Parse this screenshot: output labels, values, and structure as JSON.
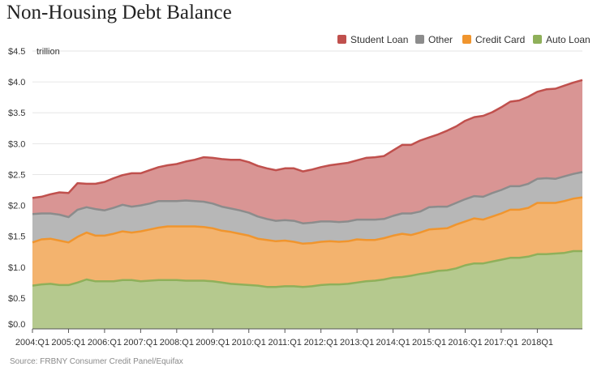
{
  "chart_data": {
    "type": "area",
    "title": "Non-Housing Debt Balance",
    "ylabel": "trillion",
    "ylim": [
      0,
      4.5
    ],
    "yticks": [
      "$0.0",
      "$0.5",
      "$1.0",
      "$1.5",
      "$2.0",
      "$2.5",
      "$3.0",
      "$3.5",
      "$4.0",
      "$4.5"
    ],
    "xticks": [
      "2004:Q1",
      "2005:Q1",
      "2006:Q1",
      "2007:Q1",
      "2008:Q1",
      "2009:Q1",
      "2010:Q1",
      "2011:Q1",
      "2012:Q1",
      "2013:Q1",
      "2014:Q1",
      "2015:Q1",
      "2016:Q1",
      "2017:Q1",
      "2018Q1"
    ],
    "x_start": "2004:Q1",
    "x_end": "2018:Q2",
    "series": [
      {
        "name": "Auto Loan",
        "color": "#8fb05a",
        "fill": "#b5c98e",
        "values": [
          0.7,
          0.72,
          0.73,
          0.71,
          0.71,
          0.75,
          0.8,
          0.77,
          0.77,
          0.77,
          0.79,
          0.79,
          0.77,
          0.78,
          0.79,
          0.79,
          0.79,
          0.78,
          0.78,
          0.78,
          0.77,
          0.75,
          0.73,
          0.72,
          0.71,
          0.7,
          0.68,
          0.68,
          0.69,
          0.69,
          0.68,
          0.69,
          0.71,
          0.72,
          0.72,
          0.73,
          0.75,
          0.77,
          0.78,
          0.8,
          0.83,
          0.84,
          0.86,
          0.89,
          0.91,
          0.94,
          0.95,
          0.98,
          1.03,
          1.06,
          1.06,
          1.09,
          1.12,
          1.15,
          1.15,
          1.17,
          1.21,
          1.21,
          1.22,
          1.23,
          1.26,
          1.26
        ]
      },
      {
        "name": "Credit Card",
        "color": "#f0952e",
        "fill": "#f3b36e",
        "values": [
          0.7,
          0.73,
          0.73,
          0.72,
          0.69,
          0.74,
          0.76,
          0.74,
          0.74,
          0.77,
          0.79,
          0.77,
          0.81,
          0.83,
          0.85,
          0.87,
          0.87,
          0.88,
          0.88,
          0.87,
          0.86,
          0.84,
          0.84,
          0.82,
          0.8,
          0.76,
          0.76,
          0.74,
          0.74,
          0.72,
          0.7,
          0.7,
          0.7,
          0.7,
          0.69,
          0.69,
          0.7,
          0.67,
          0.66,
          0.67,
          0.68,
          0.7,
          0.66,
          0.67,
          0.7,
          0.68,
          0.68,
          0.71,
          0.71,
          0.73,
          0.71,
          0.73,
          0.75,
          0.78,
          0.78,
          0.79,
          0.83,
          0.83,
          0.82,
          0.84,
          0.85,
          0.87
        ]
      },
      {
        "name": "Other",
        "color": "#8c8c8c",
        "fill": "#b7b7b7",
        "values": [
          0.46,
          0.42,
          0.41,
          0.42,
          0.41,
          0.44,
          0.41,
          0.43,
          0.41,
          0.42,
          0.43,
          0.42,
          0.42,
          0.42,
          0.43,
          0.41,
          0.41,
          0.42,
          0.41,
          0.41,
          0.4,
          0.39,
          0.38,
          0.38,
          0.37,
          0.36,
          0.34,
          0.33,
          0.33,
          0.34,
          0.33,
          0.33,
          0.33,
          0.32,
          0.32,
          0.32,
          0.32,
          0.33,
          0.33,
          0.31,
          0.32,
          0.33,
          0.35,
          0.34,
          0.36,
          0.36,
          0.35,
          0.35,
          0.36,
          0.36,
          0.37,
          0.38,
          0.38,
          0.38,
          0.38,
          0.39,
          0.39,
          0.4,
          0.39,
          0.4,
          0.4,
          0.41
        ]
      },
      {
        "name": "Student Loan",
        "color": "#c0504d",
        "fill": "#d99594",
        "values": [
          0.26,
          0.27,
          0.31,
          0.36,
          0.39,
          0.43,
          0.38,
          0.41,
          0.46,
          0.48,
          0.48,
          0.54,
          0.52,
          0.54,
          0.55,
          0.58,
          0.6,
          0.63,
          0.67,
          0.72,
          0.74,
          0.77,
          0.79,
          0.82,
          0.82,
          0.82,
          0.82,
          0.82,
          0.84,
          0.85,
          0.84,
          0.86,
          0.88,
          0.91,
          0.94,
          0.95,
          0.96,
          1.0,
          1.01,
          1.02,
          1.06,
          1.11,
          1.11,
          1.15,
          1.13,
          1.17,
          1.23,
          1.24,
          1.27,
          1.28,
          1.31,
          1.31,
          1.34,
          1.37,
          1.39,
          1.41,
          1.41,
          1.44,
          1.46,
          1.47,
          1.48,
          1.49
        ]
      }
    ],
    "legend": [
      "Student Loan",
      "Other",
      "Credit Card",
      "Auto Loan"
    ],
    "legend_position": "top-right",
    "grid": "horizontal"
  },
  "source": "Source: FRBNY Consumer Credit Panel/Equifax"
}
